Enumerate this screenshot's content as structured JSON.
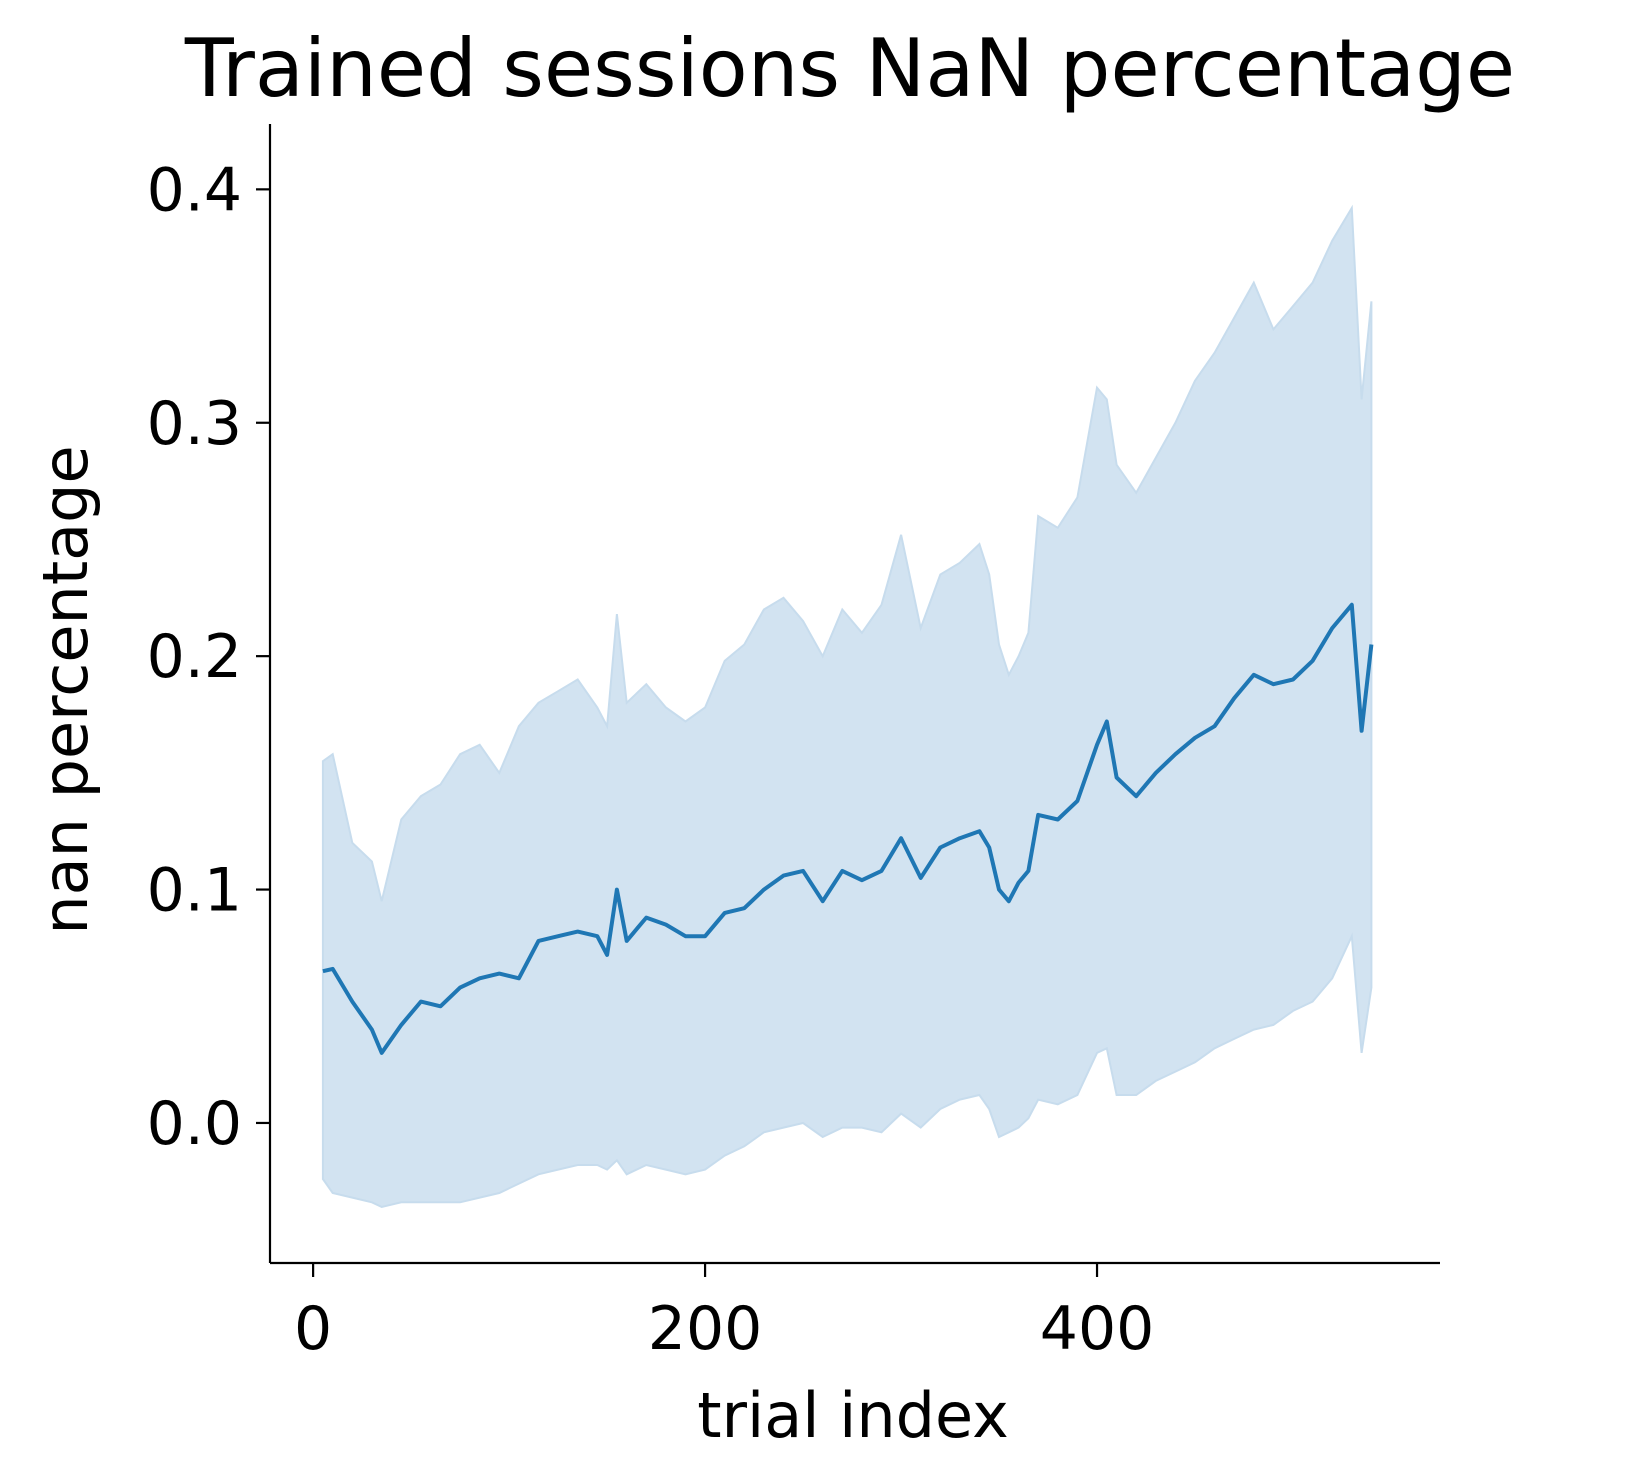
{
  "chart_data": {
    "type": "line",
    "title": "Trained sessions NaN percentage",
    "xlabel": "trial index",
    "ylabel": "nan percentage",
    "xlim": [
      -22,
      575
    ],
    "ylim": [
      -0.06,
      0.428
    ],
    "xticks": [
      0,
      200,
      400
    ],
    "yticks": [
      0.0,
      0.1,
      0.2,
      0.3,
      0.4
    ],
    "xtick_labels": [
      "0",
      "200",
      "400"
    ],
    "ytick_labels": [
      "0.0",
      "0.1",
      "0.2",
      "0.3",
      "0.4"
    ],
    "grid": false,
    "legend": "none",
    "line_color": "#1f77b4",
    "band_color": "#c7dced",
    "series": [
      {
        "x": [
          5,
          10,
          20,
          30,
          35,
          45,
          55,
          65,
          75,
          85,
          95,
          105,
          115,
          125,
          135,
          145,
          150,
          155,
          160,
          170,
          180,
          190,
          200,
          210,
          220,
          230,
          240,
          250,
          260,
          270,
          280,
          290,
          300,
          310,
          320,
          330,
          340,
          345,
          350,
          355,
          360,
          365,
          370,
          380,
          390,
          400,
          405,
          410,
          420,
          430,
          440,
          450,
          460,
          470,
          480,
          490,
          500,
          510,
          520,
          530,
          535,
          540
        ],
        "y": [
          0.065,
          0.066,
          0.052,
          0.04,
          0.03,
          0.042,
          0.052,
          0.05,
          0.058,
          0.062,
          0.064,
          0.062,
          0.078,
          0.08,
          0.082,
          0.08,
          0.072,
          0.1,
          0.078,
          0.088,
          0.085,
          0.08,
          0.08,
          0.09,
          0.092,
          0.1,
          0.106,
          0.108,
          0.095,
          0.108,
          0.104,
          0.108,
          0.122,
          0.105,
          0.118,
          0.122,
          0.125,
          0.118,
          0.1,
          0.095,
          0.103,
          0.108,
          0.132,
          0.13,
          0.138,
          0.162,
          0.172,
          0.148,
          0.14,
          0.15,
          0.158,
          0.165,
          0.17,
          0.182,
          0.192,
          0.188,
          0.19,
          0.198,
          0.212,
          0.222,
          0.168,
          0.205
        ]
      }
    ],
    "band": {
      "x": [
        5,
        10,
        20,
        30,
        35,
        45,
        55,
        65,
        75,
        85,
        95,
        105,
        115,
        125,
        135,
        145,
        150,
        155,
        160,
        170,
        180,
        190,
        200,
        210,
        220,
        230,
        240,
        250,
        260,
        270,
        280,
        290,
        300,
        310,
        320,
        330,
        340,
        345,
        350,
        355,
        360,
        365,
        370,
        380,
        390,
        400,
        405,
        410,
        420,
        430,
        440,
        450,
        460,
        470,
        480,
        490,
        500,
        510,
        520,
        530,
        535,
        540
      ],
      "upper": [
        0.155,
        0.158,
        0.12,
        0.112,
        0.095,
        0.13,
        0.14,
        0.145,
        0.158,
        0.162,
        0.15,
        0.17,
        0.18,
        0.185,
        0.19,
        0.178,
        0.17,
        0.218,
        0.18,
        0.188,
        0.178,
        0.172,
        0.178,
        0.198,
        0.205,
        0.22,
        0.225,
        0.215,
        0.2,
        0.22,
        0.21,
        0.222,
        0.252,
        0.212,
        0.235,
        0.24,
        0.248,
        0.235,
        0.205,
        0.192,
        0.2,
        0.21,
        0.26,
        0.255,
        0.268,
        0.315,
        0.31,
        0.282,
        0.27,
        0.285,
        0.3,
        0.318,
        0.33,
        0.345,
        0.36,
        0.34,
        0.35,
        0.36,
        0.378,
        0.392,
        0.31,
        0.352
      ],
      "lower": [
        -0.024,
        -0.03,
        -0.032,
        -0.034,
        -0.036,
        -0.034,
        -0.034,
        -0.034,
        -0.034,
        -0.032,
        -0.03,
        -0.026,
        -0.022,
        -0.02,
        -0.018,
        -0.018,
        -0.02,
        -0.016,
        -0.022,
        -0.018,
        -0.02,
        -0.022,
        -0.02,
        -0.014,
        -0.01,
        -0.004,
        -0.002,
        0.0,
        -0.006,
        -0.002,
        -0.002,
        -0.004,
        0.004,
        -0.002,
        0.006,
        0.01,
        0.012,
        0.006,
        -0.006,
        -0.004,
        -0.002,
        0.002,
        0.01,
        0.008,
        0.012,
        0.03,
        0.032,
        0.012,
        0.012,
        0.018,
        0.022,
        0.026,
        0.032,
        0.036,
        0.04,
        0.042,
        0.048,
        0.052,
        0.062,
        0.08,
        0.03,
        0.058
      ]
    }
  }
}
